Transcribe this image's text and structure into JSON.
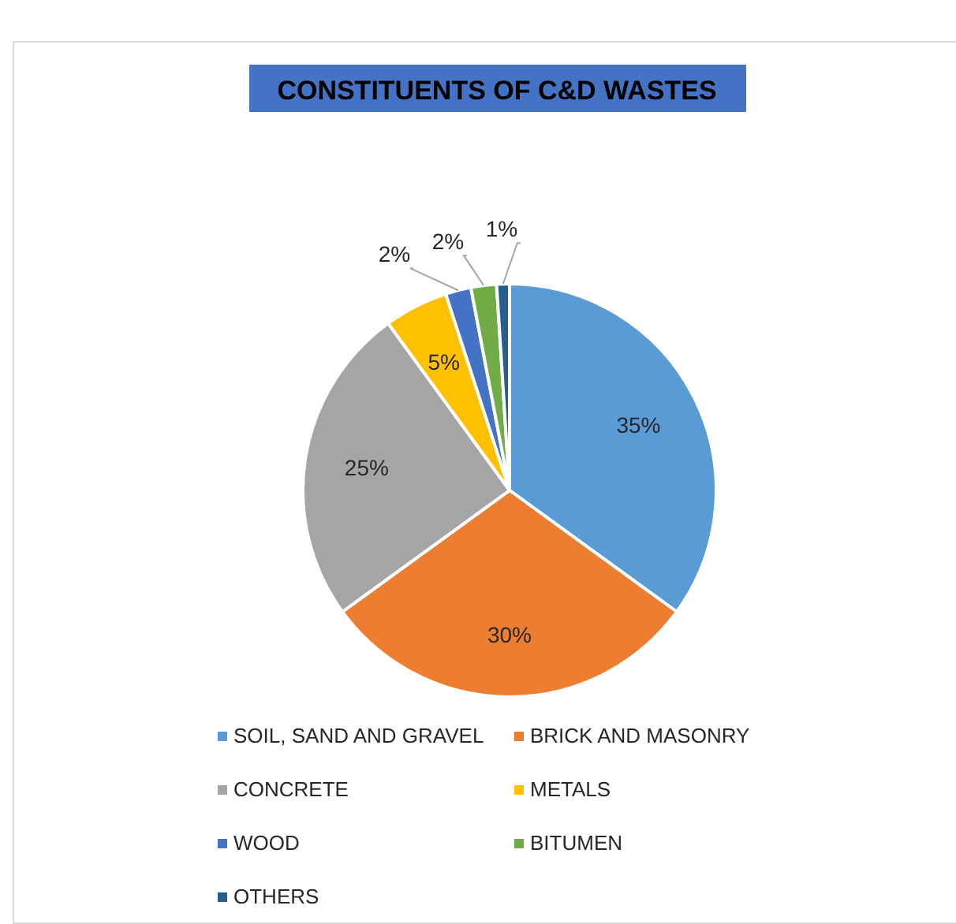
{
  "chart_data": {
    "type": "pie",
    "title": "CONSTITUENTS OF C&D WASTES",
    "categories": [
      "SOIL, SAND AND GRAVEL",
      "BRICK AND MASONRY",
      "CONCRETE",
      "METALS",
      "WOOD",
      "BITUMEN",
      "OTHERS"
    ],
    "values": [
      35,
      30,
      25,
      5,
      2,
      2,
      1
    ],
    "colors": [
      "#5b9bd5",
      "#ed7d31",
      "#a5a5a5",
      "#ffc000",
      "#4472c4",
      "#70ad47",
      "#255e91"
    ],
    "value_labels": [
      "35%",
      "30%",
      "25%",
      "5%",
      "2%",
      "2%",
      "1%"
    ],
    "legend": "bottom"
  }
}
